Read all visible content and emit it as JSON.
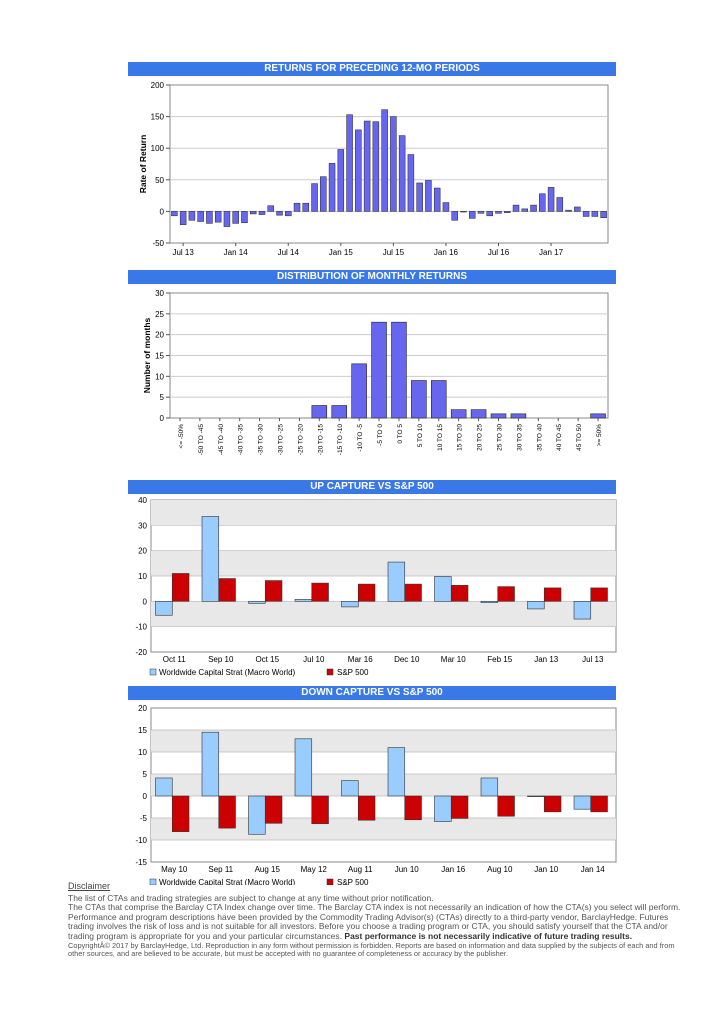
{
  "chart_data": [
    {
      "type": "bar",
      "title": "RETURNS FOR PRECEDING 12-MO PERIODS",
      "ylabel": "Rate of Return",
      "ylim": [
        -50,
        200
      ],
      "yticks": [
        -50,
        0,
        50,
        100,
        150,
        200
      ],
      "x_labels": [
        "Jul 13",
        "Jan 14",
        "Jul 14",
        "Jan 15",
        "Jul 15",
        "Jan 16",
        "Jul 16",
        "Jan 17"
      ],
      "x_label_index": [
        1,
        7,
        13,
        19,
        25,
        31,
        37,
        43
      ],
      "bar_color": "#6666ee",
      "values": [
        -7,
        -21,
        -14,
        -16,
        -19,
        -17,
        -24,
        -19,
        -18,
        -4,
        -5,
        9,
        -6,
        -7,
        13,
        13,
        44,
        55,
        76,
        98,
        153,
        129,
        143,
        142,
        161,
        150,
        120,
        90,
        45,
        49,
        37,
        14,
        -14,
        -1,
        -11,
        -3,
        -7,
        -3,
        -2,
        10,
        4,
        10,
        28,
        38,
        22,
        2,
        7,
        -8,
        -8,
        -10
      ]
    },
    {
      "type": "bar",
      "title": "DISTRIBUTION OF MONTHLY RETURNS",
      "ylabel": "Number of months",
      "ylim": [
        0,
        30
      ],
      "yticks": [
        0,
        5,
        10,
        15,
        20,
        25,
        30
      ],
      "bar_color": "#6666ee",
      "categories": [
        "<= -50%",
        "-50 TO -45",
        "-45 TO -40",
        "-40 TO -35",
        "-35 TO -30",
        "-30 TO -25",
        "-25 TO -20",
        "-20 TO -15",
        "-15 TO -10",
        "-10 TO -5",
        "-5 TO 0",
        "0 TO 5",
        "5 TO 10",
        "10 TO 15",
        "15 TO 20",
        "20 TO 25",
        "25 TO 30",
        "30 TO 35",
        "35 TO 40",
        "40 TO 45",
        "45 TO 50",
        ">= 50%"
      ],
      "values": [
        0,
        0,
        0,
        0,
        0,
        0,
        0,
        3,
        3,
        13,
        23,
        23,
        9,
        9,
        2,
        2,
        1,
        1,
        0,
        0,
        0,
        1
      ]
    },
    {
      "type": "bar",
      "title": "UP CAPTURE VS S&P 500",
      "ylim": [
        -20,
        40
      ],
      "yticks": [
        -20,
        -10,
        0,
        10,
        20,
        30,
        40
      ],
      "categories": [
        "Oct 11",
        "Sep 10",
        "Oct 15",
        "Jul 10",
        "Mar 16",
        "Dec 10",
        "Mar 10",
        "Feb 15",
        "Jan 13",
        "Jul 13"
      ],
      "series": [
        {
          "name": "Worldwide Capital Strat (Macro World)",
          "color": "#99ccff",
          "values": [
            -5.5,
            33.5,
            -0.8,
            0.8,
            -2.2,
            15.5,
            9.8,
            -0.5,
            -3,
            -7
          ]
        },
        {
          "name": "S&P 500",
          "color": "#cc0000",
          "values": [
            11,
            9,
            8.2,
            7.2,
            6.8,
            6.8,
            6.3,
            5.8,
            5.3,
            5.3
          ]
        }
      ]
    },
    {
      "type": "bar",
      "title": "DOWN CAPTURE VS S&P 500",
      "ylim": [
        -15,
        20
      ],
      "yticks": [
        -15,
        -10,
        -5,
        0,
        5,
        10,
        15,
        20
      ],
      "categories": [
        "May 10",
        "Sep 11",
        "Aug 15",
        "May 12",
        "Aug 11",
        "Jun 10",
        "Jan 16",
        "Aug 10",
        "Jan 10",
        "Jan 14"
      ],
      "series": [
        {
          "name": "Worldwide Capital Strat (Macro World)",
          "color": "#99ccff",
          "values": [
            4.1,
            14.5,
            -8.7,
            13,
            3.5,
            11,
            -5.8,
            4.1,
            0,
            -3
          ]
        },
        {
          "name": "S&P 500",
          "color": "#cc0000",
          "values": [
            -8.1,
            -7.3,
            -6.2,
            -6.3,
            -5.5,
            -5.4,
            -5.1,
            -4.6,
            -3.6,
            -3.6
          ]
        }
      ]
    }
  ],
  "disclaimer": {
    "heading": "Disclaimer",
    "line1": "The list of CTAs and trading strategies are subject to change at any time without prior notification.",
    "line2": "The CTAs that comprise the Barclay CTA Index change over time.  The Barclay CTA index is not necessarily an indication of how the CTA(s) you select will perform.",
    "line3": "Performance and program descriptions have been provided by the Commodity Trading Advisor(s) (CTAs) directly to a third-party vendor, BarclayHedge. Futures trading involves the risk of loss and is not suitable for all investors.  Before you choose a trading program or CTA, you should satisfy yourself that the CTA and/or trading program is appropriate for you and your particular circumstances.",
    "line3_bold": "Past performance is not necessarily indicative of future trading results.",
    "copyright": "CopyrightÂ© 2017 by BarclayHedge, Ltd. Reproduction in any form without permission is forbidden. Reports are based on information and data supplied by the subjects of each and from other sources, and are believed to be accurate, but must be accepted with no guarantee of completeness or accuracy by the publisher."
  }
}
